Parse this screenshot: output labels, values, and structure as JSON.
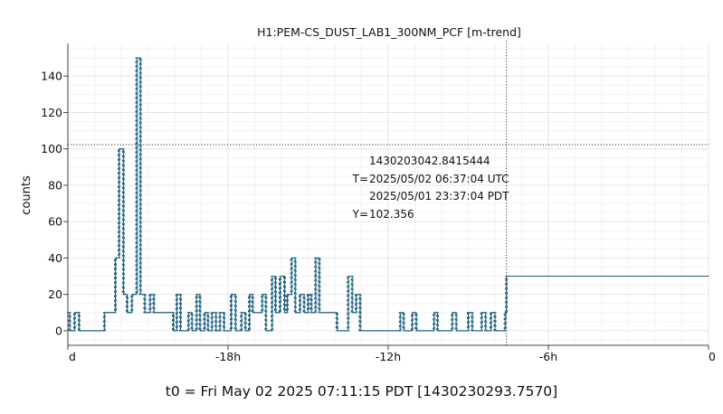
{
  "chart_data": {
    "type": "line",
    "title": "H1:PEM-CS_DUST_LAB1_300NM_PCF [m-trend]",
    "ylabel": "counts",
    "xlabel": "",
    "xlim_hours": [
      -24,
      0
    ],
    "ylim": [
      -8,
      158
    ],
    "x_ticks": [
      {
        "value": -24,
        "label": "d"
      },
      {
        "value": -18,
        "label": "-18h"
      },
      {
        "value": -12,
        "label": "-12h"
      },
      {
        "value": -6,
        "label": "-6h"
      },
      {
        "value": 0,
        "label": "0"
      }
    ],
    "y_ticks": [
      0,
      20,
      40,
      60,
      80,
      100,
      120,
      140
    ],
    "grid": true,
    "crosshair": {
      "x_hours": -7.57,
      "y": 102.356,
      "lines": [
        "1430203042.8415444",
        "T=",
        "2025/05/02 06:37:04 UTC",
        "2025/05/01 23:37:04 PDT",
        "Y=",
        "102.356"
      ]
    },
    "series": [
      {
        "color": "#1f5f7f",
        "min_color": "#1b3b5a",
        "max_color": "#2e8ba8",
        "points": [
          [
            -24.0,
            10
          ],
          [
            -23.93,
            10
          ],
          [
            -23.93,
            0
          ],
          [
            -23.75,
            0
          ],
          [
            -23.75,
            10
          ],
          [
            -23.58,
            10
          ],
          [
            -23.58,
            0
          ],
          [
            -22.63,
            0
          ],
          [
            -22.63,
            10
          ],
          [
            -22.22,
            10
          ],
          [
            -22.22,
            40
          ],
          [
            -22.08,
            40
          ],
          [
            -22.08,
            100
          ],
          [
            -21.92,
            100
          ],
          [
            -21.92,
            20
          ],
          [
            -21.78,
            20
          ],
          [
            -21.78,
            10
          ],
          [
            -21.6,
            10
          ],
          [
            -21.6,
            20
          ],
          [
            -21.42,
            20
          ],
          [
            -21.42,
            150
          ],
          [
            -21.28,
            150
          ],
          [
            -21.28,
            20
          ],
          [
            -21.12,
            20
          ],
          [
            -21.12,
            10
          ],
          [
            -20.92,
            10
          ],
          [
            -20.92,
            20
          ],
          [
            -20.78,
            20
          ],
          [
            -20.78,
            10
          ],
          [
            -20.05,
            10
          ],
          [
            -20.05,
            0
          ],
          [
            -19.92,
            0
          ],
          [
            -19.92,
            20
          ],
          [
            -19.78,
            20
          ],
          [
            -19.78,
            0
          ],
          [
            -19.48,
            0
          ],
          [
            -19.48,
            10
          ],
          [
            -19.35,
            10
          ],
          [
            -19.35,
            0
          ],
          [
            -19.18,
            0
          ],
          [
            -19.18,
            20
          ],
          [
            -19.05,
            20
          ],
          [
            -19.05,
            0
          ],
          [
            -18.88,
            0
          ],
          [
            -18.88,
            10
          ],
          [
            -18.75,
            10
          ],
          [
            -18.75,
            0
          ],
          [
            -18.6,
            0
          ],
          [
            -18.6,
            10
          ],
          [
            -18.45,
            10
          ],
          [
            -18.45,
            0
          ],
          [
            -18.3,
            0
          ],
          [
            -18.3,
            10
          ],
          [
            -18.15,
            10
          ],
          [
            -18.15,
            0
          ],
          [
            -17.88,
            0
          ],
          [
            -17.88,
            20
          ],
          [
            -17.72,
            20
          ],
          [
            -17.72,
            0
          ],
          [
            -17.5,
            0
          ],
          [
            -17.5,
            10
          ],
          [
            -17.35,
            10
          ],
          [
            -17.35,
            0
          ],
          [
            -17.2,
            0
          ],
          [
            -17.2,
            20
          ],
          [
            -17.08,
            20
          ],
          [
            -17.08,
            10
          ],
          [
            -16.72,
            10
          ],
          [
            -16.72,
            20
          ],
          [
            -16.58,
            20
          ],
          [
            -16.58,
            0
          ],
          [
            -16.35,
            0
          ],
          [
            -16.35,
            30
          ],
          [
            -16.22,
            30
          ],
          [
            -16.22,
            10
          ],
          [
            -16.05,
            10
          ],
          [
            -16.05,
            30
          ],
          [
            -15.88,
            30
          ],
          [
            -15.88,
            10
          ],
          [
            -15.78,
            10
          ],
          [
            -15.78,
            20
          ],
          [
            -15.62,
            20
          ],
          [
            -15.62,
            40
          ],
          [
            -15.48,
            40
          ],
          [
            -15.48,
            10
          ],
          [
            -15.3,
            10
          ],
          [
            -15.3,
            20
          ],
          [
            -15.15,
            20
          ],
          [
            -15.15,
            10
          ],
          [
            -15.0,
            10
          ],
          [
            -15.0,
            20
          ],
          [
            -14.88,
            20
          ],
          [
            -14.88,
            10
          ],
          [
            -14.72,
            10
          ],
          [
            -14.72,
            40
          ],
          [
            -14.58,
            40
          ],
          [
            -14.58,
            10
          ],
          [
            -13.92,
            10
          ],
          [
            -13.92,
            0
          ],
          [
            -13.5,
            0
          ],
          [
            -13.5,
            30
          ],
          [
            -13.35,
            30
          ],
          [
            -13.35,
            10
          ],
          [
            -13.2,
            10
          ],
          [
            -13.2,
            20
          ],
          [
            -13.05,
            20
          ],
          [
            -13.05,
            0
          ],
          [
            -11.55,
            0
          ],
          [
            -11.55,
            10
          ],
          [
            -11.42,
            10
          ],
          [
            -11.42,
            0
          ],
          [
            -11.1,
            0
          ],
          [
            -11.1,
            10
          ],
          [
            -10.95,
            10
          ],
          [
            -10.95,
            0
          ],
          [
            -10.28,
            0
          ],
          [
            -10.28,
            10
          ],
          [
            -10.15,
            10
          ],
          [
            -10.15,
            0
          ],
          [
            -9.6,
            0
          ],
          [
            -9.6,
            10
          ],
          [
            -9.45,
            10
          ],
          [
            -9.45,
            0
          ],
          [
            -9.0,
            0
          ],
          [
            -9.0,
            10
          ],
          [
            -8.85,
            10
          ],
          [
            -8.85,
            0
          ],
          [
            -8.5,
            0
          ],
          [
            -8.5,
            10
          ],
          [
            -8.35,
            10
          ],
          [
            -8.35,
            0
          ],
          [
            -8.15,
            0
          ],
          [
            -8.15,
            10
          ],
          [
            -8.0,
            10
          ],
          [
            -8.0,
            0
          ],
          [
            -7.62,
            0
          ],
          [
            -7.62,
            10
          ],
          [
            -7.57,
            10
          ],
          [
            -7.57,
            30
          ],
          [
            0.0,
            30
          ]
        ]
      }
    ]
  },
  "footer": {
    "t0": "t0 = Fri May 02 2025 07:11:15 PDT [1430230293.7570]"
  }
}
